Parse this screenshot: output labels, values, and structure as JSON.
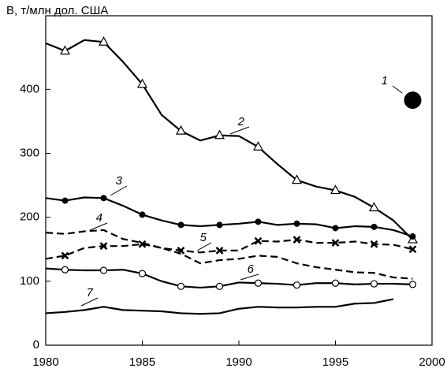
{
  "chart_data": {
    "type": "line",
    "ylabel": "В, т/млн дол. США",
    "x": [
      1980,
      1981,
      1982,
      1983,
      1984,
      1985,
      1986,
      1987,
      1988,
      1989,
      1990,
      1991,
      1992,
      1993,
      1994,
      1995,
      1996,
      1997,
      1998,
      1999
    ],
    "xlim": [
      1980,
      2000
    ],
    "xticks": [
      1980,
      1985,
      1990,
      1995,
      2000
    ],
    "ylim": [
      0,
      515
    ],
    "yticks": [
      0,
      100,
      200,
      300,
      400
    ],
    "series": [
      {
        "name": "1",
        "color": "#000000",
        "marker": "big-dot",
        "dash": false,
        "values": [
          null,
          null,
          null,
          null,
          null,
          null,
          null,
          null,
          null,
          null,
          null,
          null,
          null,
          null,
          null,
          null,
          null,
          null,
          null,
          383
        ]
      },
      {
        "name": "2",
        "color": "#000000",
        "marker": "triangle",
        "dash": false,
        "values": [
          472,
          460,
          477,
          474,
          443,
          408,
          360,
          335,
          320,
          328,
          327,
          310,
          283,
          258,
          248,
          242,
          232,
          215,
          195,
          165
        ]
      },
      {
        "name": "3",
        "color": "#000000",
        "marker": "dot",
        "dash": false,
        "values": [
          230,
          226,
          231,
          230,
          218,
          204,
          195,
          188,
          186,
          188,
          190,
          193,
          188,
          190,
          189,
          183,
          186,
          185,
          180,
          170
        ]
      },
      {
        "name": "4",
        "color": "#000000",
        "marker": "none",
        "dash": true,
        "values": [
          176,
          174,
          178,
          180,
          166,
          160,
          152,
          143,
          128,
          133,
          135,
          140,
          138,
          128,
          122,
          118,
          114,
          113,
          106,
          104
        ]
      },
      {
        "name": "5",
        "color": "#000000",
        "marker": "cross",
        "dash": true,
        "values": [
          135,
          140,
          152,
          155,
          155,
          158,
          152,
          148,
          145,
          148,
          148,
          163,
          162,
          165,
          160,
          160,
          162,
          158,
          157,
          150
        ]
      },
      {
        "name": "6",
        "color": "#000000",
        "marker": "circle",
        "dash": false,
        "values": [
          120,
          118,
          117,
          117,
          118,
          112,
          100,
          92,
          90,
          92,
          98,
          97,
          96,
          94,
          97,
          97,
          95,
          96,
          96,
          95
        ]
      },
      {
        "name": "7",
        "color": "#000000",
        "marker": "none",
        "dash": false,
        "values": [
          50,
          52,
          55,
          60,
          55,
          54,
          53,
          50,
          49,
          50,
          57,
          60,
          59,
          59,
          60,
          60,
          65,
          66,
          72,
          null
        ]
      }
    ]
  }
}
